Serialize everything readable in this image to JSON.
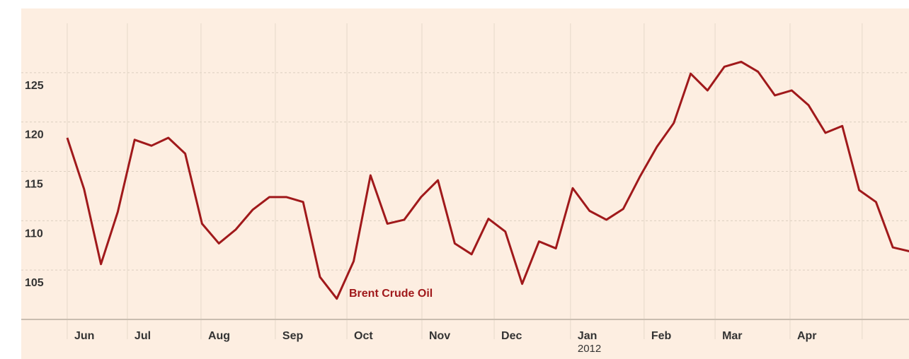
{
  "chart_data": {
    "type": "line",
    "series": [
      {
        "name": "Brent Crude Oil",
        "color": "#a0191b",
        "x": [
          0,
          1,
          2,
          3,
          4,
          5,
          6,
          7,
          8,
          9,
          10,
          11,
          12,
          13,
          14,
          15,
          16,
          17,
          18,
          19,
          20,
          21,
          22,
          23,
          24,
          25,
          26,
          27,
          28,
          29,
          30,
          31,
          32,
          33,
          34,
          35,
          36,
          37,
          38,
          39,
          40,
          41,
          42,
          43,
          44,
          45,
          46,
          47,
          48,
          49,
          50
        ],
        "values": [
          118.4,
          113.2,
          105.6,
          110.9,
          118.2,
          117.6,
          118.4,
          116.8,
          109.7,
          107.7,
          109.1,
          111.1,
          112.4,
          112.4,
          111.9,
          104.3,
          102.1,
          105.9,
          114.6,
          109.7,
          110.1,
          112.4,
          114.1,
          107.7,
          106.6,
          110.2,
          108.9,
          103.6,
          107.9,
          107.2,
          113.3,
          111.0,
          110.1,
          111.2,
          114.5,
          117.5,
          119.9,
          124.9,
          123.2,
          125.6,
          126.1,
          125.1,
          122.7,
          123.2,
          121.7,
          118.9,
          119.6,
          113.1,
          111.9,
          107.3,
          106.9
        ]
      }
    ],
    "xlim": [
      -2.73,
      49.96
    ],
    "xticks": [
      {
        "value": 0,
        "label": "Jun"
      },
      {
        "value": 3.57,
        "label": "Jul"
      },
      {
        "value": 7.94,
        "label": "Aug"
      },
      {
        "value": 12.35,
        "label": "Sep"
      },
      {
        "value": 16.6,
        "label": "Oct"
      },
      {
        "value": 21.05,
        "label": "Nov"
      },
      {
        "value": 25.34,
        "label": "Dec"
      },
      {
        "value": 29.87,
        "label": "Jan"
      },
      {
        "value": 34.24,
        "label": "Feb"
      },
      {
        "value": 38.45,
        "label": "Mar"
      },
      {
        "value": 42.9,
        "label": "Apr"
      },
      {
        "value": 47.18,
        "label": null
      }
    ],
    "year_label": "2012",
    "ylim": [
      100,
      130
    ],
    "yticks": [
      105,
      110,
      115,
      120,
      125
    ],
    "grid": true
  }
}
